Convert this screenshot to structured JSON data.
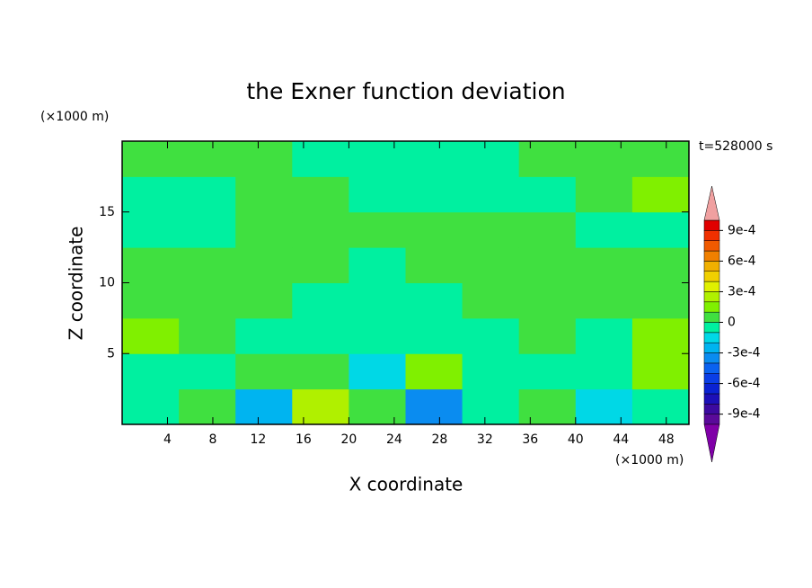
{
  "chart_data": {
    "type": "contour",
    "title": "the Exner function deviation",
    "xlabel": "X coordinate",
    "ylabel": "Z coordinate",
    "x_unit": "(×1000 m)",
    "y_unit": "(×1000 m)",
    "time_label": "t=528000 s",
    "xlim": [
      0,
      50
    ],
    "ylim": [
      0,
      20
    ],
    "xticks": [
      4,
      8,
      12,
      16,
      20,
      24,
      28,
      32,
      36,
      40,
      44,
      48
    ],
    "yticks": [
      5,
      10,
      15
    ],
    "x_edges": [
      0,
      5,
      10,
      15,
      20,
      25,
      30,
      35,
      40,
      45,
      50
    ],
    "z_edges": [
      0,
      2.5,
      5,
      7.5,
      10,
      12.5,
      15,
      17.5,
      20
    ],
    "field": [
      [
        -5e-05,
        5e-05,
        -0.00025,
        0.00025,
        5e-05,
        -0.00035,
        -5e-05,
        5e-05,
        -0.00015,
        -5e-05
      ],
      [
        -5e-05,
        -5e-05,
        5e-05,
        5e-05,
        -0.00015,
        0.00015,
        -5e-05,
        -5e-05,
        -5e-05,
        0.00015
      ],
      [
        0.00015,
        5e-05,
        -5e-05,
        -5e-05,
        -5e-05,
        -5e-05,
        -5e-05,
        5e-05,
        -5e-05,
        0.00015
      ],
      [
        5e-05,
        5e-05,
        5e-05,
        -5e-05,
        -5e-05,
        -5e-05,
        5e-05,
        5e-05,
        5e-05,
        5e-05
      ],
      [
        5e-05,
        5e-05,
        5e-05,
        5e-05,
        -5e-05,
        5e-05,
        5e-05,
        5e-05,
        5e-05,
        5e-05
      ],
      [
        -5e-05,
        -5e-05,
        5e-05,
        5e-05,
        5e-05,
        5e-05,
        5e-05,
        5e-05,
        -5e-05,
        -5e-05
      ],
      [
        -5e-05,
        -5e-05,
        5e-05,
        5e-05,
        -5e-05,
        -5e-05,
        -5e-05,
        -5e-05,
        5e-05,
        0.00015
      ],
      [
        5e-05,
        5e-05,
        5e-05,
        -5e-05,
        -5e-05,
        -5e-05,
        -5e-05,
        5e-05,
        5e-05,
        5e-05
      ]
    ],
    "levels": [
      -0.001,
      -0.0009,
      -0.0008,
      -0.0007,
      -0.0006,
      -0.0005,
      -0.0004,
      -0.0003,
      -0.0002,
      -0.0001,
      0,
      0.0001,
      0.0002,
      0.0003,
      0.0004,
      0.0005,
      0.0006,
      0.0007,
      0.0008,
      0.0009,
      0.001
    ],
    "colors": [
      "#5a0a9a",
      "#3c0aa0",
      "#1c10b8",
      "#0a22d2",
      "#0a3ee6",
      "#0a62f0",
      "#0a8cf0",
      "#00b4f0",
      "#00d8e6",
      "#00f0a0",
      "#40e040",
      "#80f000",
      "#b0f000",
      "#e0f000",
      "#f0d000",
      "#f0b000",
      "#f08000",
      "#f05a00",
      "#f03000",
      "#e00000"
    ],
    "extend_colors": [
      "#8000a8",
      "#f0a0a0"
    ],
    "cbar_ticks": [
      {
        "value": 0.0009,
        "label": "9e-4"
      },
      {
        "value": 0.0006,
        "label": "6e-4"
      },
      {
        "value": 0.0003,
        "label": "3e-4"
      },
      0,
      {
        "value": -0.0003,
        "label": "-3e-4"
      },
      {
        "value": -0.0006,
        "label": "-6e-4"
      },
      {
        "value": -0.0009,
        "label": "-9e-4"
      }
    ]
  }
}
